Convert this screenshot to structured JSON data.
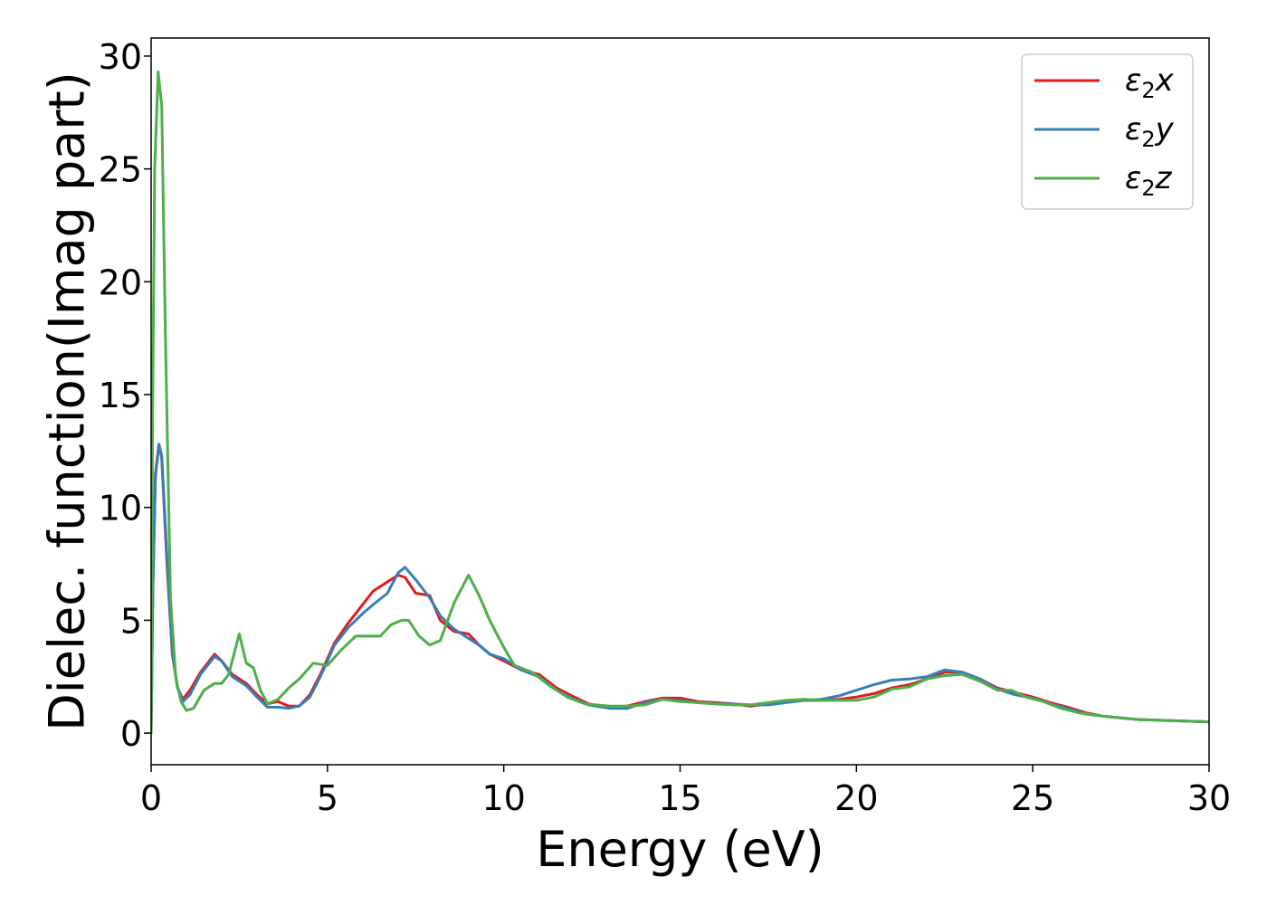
{
  "chart_data": {
    "type": "line",
    "xlabel": "Energy (eV)",
    "ylabel": "Dielec. function(Imag part)",
    "xlim": [
      0,
      30
    ],
    "ylim": [
      -1.4,
      30.8
    ],
    "xticks": [
      0,
      5,
      10,
      15,
      20,
      25,
      30
    ],
    "yticks": [
      0,
      5,
      10,
      15,
      20,
      25,
      30
    ],
    "grid": false,
    "legend_position": "top-right",
    "series": [
      {
        "name": "ε2x",
        "label_main": "ε",
        "label_sub": "2",
        "label_var": "x",
        "color": "#e41a1c",
        "points": [
          [
            0,
            0
          ],
          [
            0.05,
            6.5
          ],
          [
            0.12,
            11.5
          ],
          [
            0.22,
            12.8
          ],
          [
            0.3,
            12.2
          ],
          [
            0.45,
            7.5
          ],
          [
            0.6,
            3.5
          ],
          [
            0.75,
            2.0
          ],
          [
            0.9,
            1.5
          ],
          [
            1.1,
            1.9
          ],
          [
            1.4,
            2.7
          ],
          [
            1.8,
            3.5
          ],
          [
            2.0,
            3.2
          ],
          [
            2.3,
            2.6
          ],
          [
            2.7,
            2.2
          ],
          [
            3.0,
            1.7
          ],
          [
            3.3,
            1.3
          ],
          [
            3.6,
            1.4
          ],
          [
            3.9,
            1.2
          ],
          [
            4.2,
            1.2
          ],
          [
            4.5,
            1.7
          ],
          [
            4.8,
            2.6
          ],
          [
            5.2,
            4.0
          ],
          [
            5.6,
            4.9
          ],
          [
            6.0,
            5.7
          ],
          [
            6.3,
            6.3
          ],
          [
            6.7,
            6.7
          ],
          [
            7.0,
            7.0
          ],
          [
            7.2,
            6.9
          ],
          [
            7.5,
            6.2
          ],
          [
            7.9,
            6.1
          ],
          [
            8.2,
            5.0
          ],
          [
            8.6,
            4.5
          ],
          [
            9.0,
            4.4
          ],
          [
            9.3,
            3.9
          ],
          [
            9.6,
            3.5
          ],
          [
            10.0,
            3.2
          ],
          [
            10.5,
            2.8
          ],
          [
            11.0,
            2.6
          ],
          [
            11.5,
            2.0
          ],
          [
            12.0,
            1.6
          ],
          [
            12.4,
            1.3
          ],
          [
            13.0,
            1.15
          ],
          [
            13.5,
            1.2
          ],
          [
            14.0,
            1.4
          ],
          [
            14.5,
            1.55
          ],
          [
            15.0,
            1.55
          ],
          [
            15.5,
            1.4
          ],
          [
            16.0,
            1.35
          ],
          [
            16.5,
            1.3
          ],
          [
            17.0,
            1.2
          ],
          [
            17.5,
            1.3
          ],
          [
            18.0,
            1.4
          ],
          [
            18.5,
            1.45
          ],
          [
            19.0,
            1.45
          ],
          [
            19.5,
            1.5
          ],
          [
            20.0,
            1.6
          ],
          [
            20.5,
            1.75
          ],
          [
            21.0,
            2.0
          ],
          [
            21.5,
            2.15
          ],
          [
            22.0,
            2.4
          ],
          [
            22.5,
            2.7
          ],
          [
            23.0,
            2.7
          ],
          [
            23.5,
            2.4
          ],
          [
            24.0,
            2.0
          ],
          [
            24.5,
            1.8
          ],
          [
            25.0,
            1.6
          ],
          [
            25.5,
            1.35
          ],
          [
            26.0,
            1.15
          ],
          [
            26.5,
            0.9
          ],
          [
            27.0,
            0.75
          ],
          [
            28.0,
            0.6
          ],
          [
            29.0,
            0.55
          ],
          [
            30.0,
            0.5
          ]
        ]
      },
      {
        "name": "ε2y",
        "label_main": "ε",
        "label_sub": "2",
        "label_var": "y",
        "color": "#377eb8",
        "points": [
          [
            0,
            0
          ],
          [
            0.05,
            6.2
          ],
          [
            0.12,
            11.3
          ],
          [
            0.22,
            12.8
          ],
          [
            0.3,
            12.3
          ],
          [
            0.45,
            7.8
          ],
          [
            0.6,
            3.6
          ],
          [
            0.75,
            2.0
          ],
          [
            0.9,
            1.4
          ],
          [
            1.1,
            1.7
          ],
          [
            1.4,
            2.6
          ],
          [
            1.8,
            3.4
          ],
          [
            2.0,
            3.2
          ],
          [
            2.3,
            2.5
          ],
          [
            2.7,
            2.1
          ],
          [
            3.0,
            1.6
          ],
          [
            3.3,
            1.15
          ],
          [
            3.6,
            1.15
          ],
          [
            3.9,
            1.1
          ],
          [
            4.2,
            1.2
          ],
          [
            4.5,
            1.6
          ],
          [
            4.8,
            2.5
          ],
          [
            5.2,
            3.9
          ],
          [
            5.6,
            4.7
          ],
          [
            6.0,
            5.3
          ],
          [
            6.3,
            5.7
          ],
          [
            6.7,
            6.2
          ],
          [
            7.0,
            7.1
          ],
          [
            7.2,
            7.35
          ],
          [
            7.5,
            6.8
          ],
          [
            7.9,
            6.0
          ],
          [
            8.2,
            5.2
          ],
          [
            8.6,
            4.6
          ],
          [
            9.0,
            4.2
          ],
          [
            9.3,
            3.9
          ],
          [
            9.6,
            3.5
          ],
          [
            10.0,
            3.3
          ],
          [
            10.5,
            2.8
          ],
          [
            11.0,
            2.5
          ],
          [
            11.5,
            1.9
          ],
          [
            12.0,
            1.5
          ],
          [
            12.4,
            1.25
          ],
          [
            13.0,
            1.1
          ],
          [
            13.5,
            1.1
          ],
          [
            14.0,
            1.35
          ],
          [
            14.5,
            1.5
          ],
          [
            15.0,
            1.45
          ],
          [
            15.5,
            1.35
          ],
          [
            16.0,
            1.3
          ],
          [
            16.5,
            1.3
          ],
          [
            17.0,
            1.25
          ],
          [
            17.5,
            1.25
          ],
          [
            18.0,
            1.35
          ],
          [
            18.5,
            1.45
          ],
          [
            19.0,
            1.5
          ],
          [
            19.5,
            1.65
          ],
          [
            20.0,
            1.9
          ],
          [
            20.5,
            2.15
          ],
          [
            21.0,
            2.35
          ],
          [
            21.5,
            2.4
          ],
          [
            22.0,
            2.5
          ],
          [
            22.5,
            2.8
          ],
          [
            23.0,
            2.7
          ],
          [
            23.5,
            2.4
          ],
          [
            24.0,
            1.95
          ],
          [
            24.5,
            1.7
          ],
          [
            25.0,
            1.55
          ],
          [
            25.5,
            1.3
          ],
          [
            26.0,
            1.1
          ],
          [
            26.5,
            0.85
          ],
          [
            27.0,
            0.75
          ],
          [
            28.0,
            0.6
          ],
          [
            29.0,
            0.55
          ],
          [
            30.0,
            0.5
          ]
        ]
      },
      {
        "name": "ε2z",
        "label_main": "ε",
        "label_sub": "2",
        "label_var": "z",
        "color": "#4daf4a",
        "points": [
          [
            0,
            0
          ],
          [
            0.04,
            14.0
          ],
          [
            0.1,
            25.0
          ],
          [
            0.2,
            29.3
          ],
          [
            0.3,
            27.8
          ],
          [
            0.4,
            18.0
          ],
          [
            0.55,
            6.0
          ],
          [
            0.7,
            2.4
          ],
          [
            0.85,
            1.4
          ],
          [
            1.0,
            1.0
          ],
          [
            1.2,
            1.1
          ],
          [
            1.5,
            1.9
          ],
          [
            1.8,
            2.2
          ],
          [
            2.0,
            2.2
          ],
          [
            2.2,
            2.6
          ],
          [
            2.5,
            4.4
          ],
          [
            2.7,
            3.1
          ],
          [
            2.9,
            2.9
          ],
          [
            3.1,
            1.9
          ],
          [
            3.3,
            1.3
          ],
          [
            3.6,
            1.5
          ],
          [
            3.9,
            2.0
          ],
          [
            4.2,
            2.4
          ],
          [
            4.6,
            3.1
          ],
          [
            5.0,
            3.0
          ],
          [
            5.4,
            3.7
          ],
          [
            5.8,
            4.3
          ],
          [
            6.1,
            4.3
          ],
          [
            6.5,
            4.3
          ],
          [
            6.8,
            4.8
          ],
          [
            7.1,
            5.0
          ],
          [
            7.3,
            5.0
          ],
          [
            7.6,
            4.3
          ],
          [
            7.9,
            3.9
          ],
          [
            8.2,
            4.1
          ],
          [
            8.6,
            5.8
          ],
          [
            9.0,
            7.0
          ],
          [
            9.3,
            6.1
          ],
          [
            9.6,
            5.0
          ],
          [
            10.0,
            3.8
          ],
          [
            10.3,
            3.0
          ],
          [
            10.8,
            2.7
          ],
          [
            11.3,
            2.1
          ],
          [
            11.8,
            1.6
          ],
          [
            12.3,
            1.3
          ],
          [
            13.0,
            1.2
          ],
          [
            13.5,
            1.2
          ],
          [
            14.0,
            1.25
          ],
          [
            14.5,
            1.5
          ],
          [
            15.0,
            1.4
          ],
          [
            15.5,
            1.35
          ],
          [
            16.0,
            1.3
          ],
          [
            16.5,
            1.25
          ],
          [
            17.0,
            1.25
          ],
          [
            17.5,
            1.35
          ],
          [
            18.0,
            1.45
          ],
          [
            18.5,
            1.5
          ],
          [
            19.0,
            1.45
          ],
          [
            19.5,
            1.45
          ],
          [
            20.0,
            1.45
          ],
          [
            20.5,
            1.6
          ],
          [
            21.0,
            1.95
          ],
          [
            21.5,
            2.05
          ],
          [
            22.0,
            2.4
          ],
          [
            22.5,
            2.55
          ],
          [
            23.0,
            2.6
          ],
          [
            23.5,
            2.3
          ],
          [
            24.0,
            1.9
          ],
          [
            24.4,
            1.9
          ],
          [
            24.8,
            1.6
          ],
          [
            25.3,
            1.4
          ],
          [
            25.8,
            1.1
          ],
          [
            26.3,
            0.9
          ],
          [
            27.0,
            0.75
          ],
          [
            28.0,
            0.6
          ],
          [
            29.0,
            0.55
          ],
          [
            30.0,
            0.5
          ]
        ]
      }
    ]
  }
}
